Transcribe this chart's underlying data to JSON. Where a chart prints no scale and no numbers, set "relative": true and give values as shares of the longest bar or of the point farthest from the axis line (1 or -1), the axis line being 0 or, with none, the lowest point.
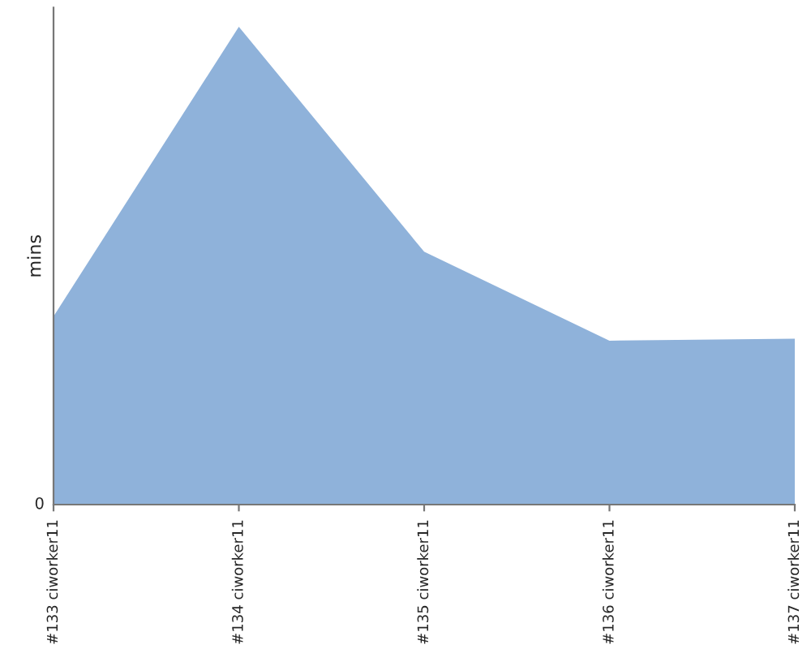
{
  "chart_data": {
    "type": "area",
    "relative": true,
    "ylabel": "mins",
    "categories": [
      "#133 ciworker11",
      "#134 ciworker11",
      "#135 ciworker11",
      "#136 ciworker11",
      "#137 ciworker11"
    ],
    "series": [
      {
        "color": "#8fb2da",
        "values": [
          0.394,
          1,
          0.529,
          0.343,
          0.347
        ]
      }
    ],
    "annotations": [
      "0"
    ],
    "grid": false,
    "legend": false
  }
}
